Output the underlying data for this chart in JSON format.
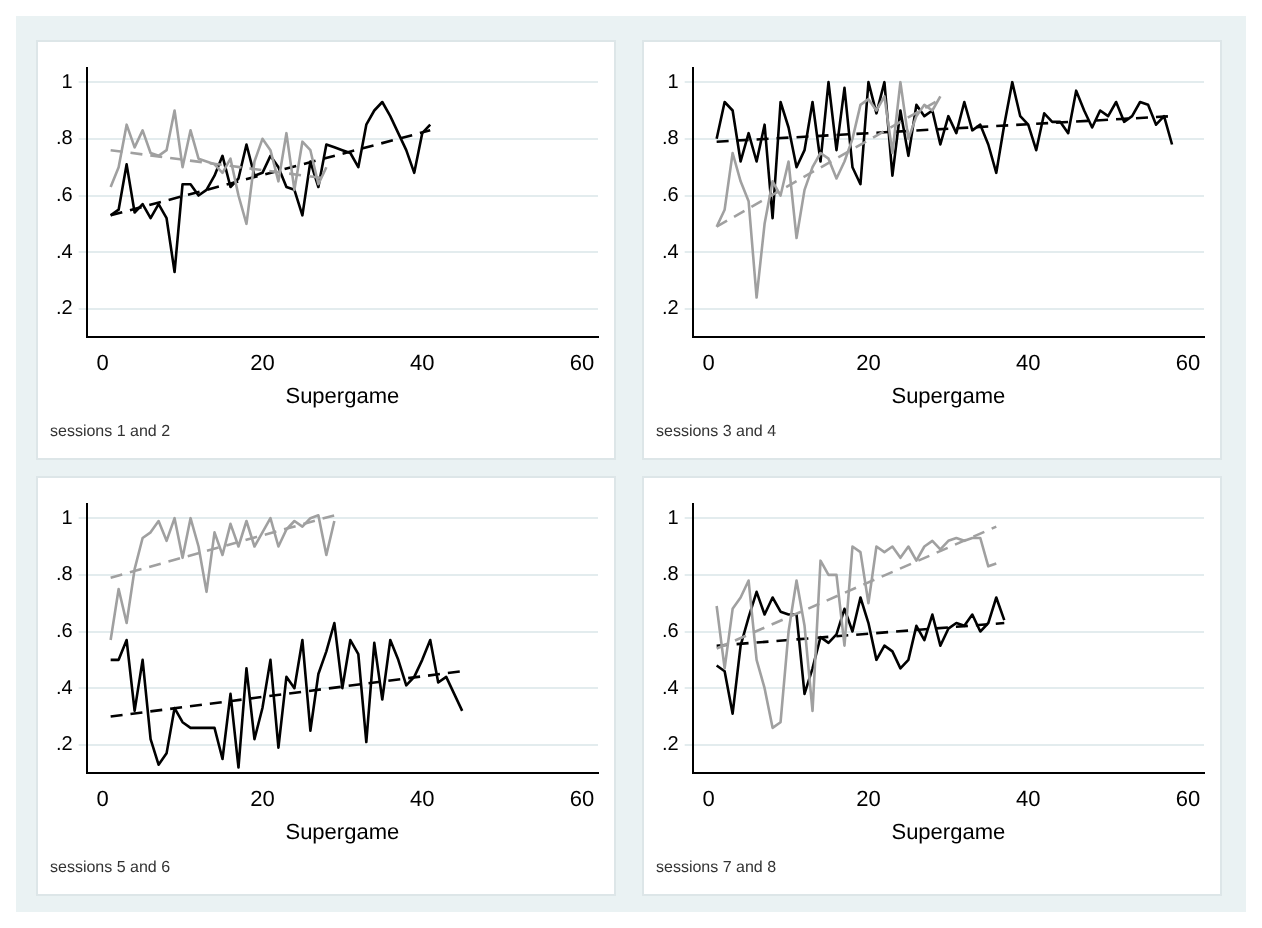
{
  "chart_data": [
    {
      "type": "line",
      "xlabel": "Supergame",
      "annotations": [
        "sessions 1 and 2"
      ],
      "xlim": [
        -2,
        62
      ],
      "xticks": [
        0,
        20,
        40,
        60
      ],
      "ylim": [
        0.1,
        1.05
      ],
      "yticks": [
        {
          "value": 0.2,
          "label": ".2"
        },
        {
          "value": 0.4,
          "label": ".4"
        },
        {
          "value": 0.6,
          "label": ".6"
        },
        {
          "value": 0.8,
          "label": ".8"
        },
        {
          "value": 1,
          "label": "1"
        }
      ],
      "grid": "y",
      "marker": "none",
      "series": [
        {
          "color": "#a0a0a0",
          "line_style": "solid",
          "x": [
            1,
            2,
            3,
            4,
            5,
            6,
            7,
            8,
            9,
            10,
            11,
            12,
            13,
            14,
            15,
            16,
            17,
            18,
            19,
            20,
            21,
            22,
            23,
            24,
            25,
            26,
            27,
            28
          ],
          "values": [
            0.63,
            0.7,
            0.85,
            0.77,
            0.83,
            0.75,
            0.74,
            0.76,
            0.9,
            0.7,
            0.83,
            0.73,
            0.72,
            0.71,
            0.68,
            0.73,
            0.6,
            0.5,
            0.72,
            0.8,
            0.76,
            0.65,
            0.82,
            0.62,
            0.79,
            0.76,
            0.64,
            0.7
          ]
        },
        {
          "color": "#a0a0a0",
          "line_style": "dashed",
          "x": [
            1,
            28
          ],
          "values": [
            0.76,
            0.66
          ]
        },
        {
          "color": "#000000",
          "line_style": "solid",
          "x": [
            1,
            2,
            3,
            4,
            5,
            6,
            7,
            8,
            9,
            10,
            11,
            12,
            13,
            14,
            15,
            16,
            17,
            18,
            19,
            20,
            21,
            22,
            23,
            24,
            25,
            26,
            27,
            28,
            29,
            30,
            31,
            32,
            33,
            34,
            35,
            36,
            37,
            38,
            39,
            40,
            41
          ],
          "values": [
            0.53,
            0.55,
            0.71,
            0.54,
            0.57,
            0.52,
            0.57,
            0.52,
            0.33,
            0.64,
            0.64,
            0.6,
            0.62,
            0.67,
            0.74,
            0.63,
            0.66,
            0.78,
            0.67,
            0.68,
            0.74,
            0.7,
            0.63,
            0.62,
            0.53,
            0.72,
            0.63,
            0.78,
            0.77,
            0.76,
            0.75,
            0.7,
            0.85,
            0.9,
            0.93,
            0.88,
            0.82,
            0.76,
            0.68,
            0.82,
            0.85
          ]
        },
        {
          "color": "#000000",
          "line_style": "dashed",
          "x": [
            1,
            41
          ],
          "values": [
            0.53,
            0.83
          ]
        }
      ]
    },
    {
      "type": "line",
      "xlabel": "Supergame",
      "annotations": [
        "sessions 3 and 4"
      ],
      "xlim": [
        -2,
        62
      ],
      "xticks": [
        0,
        20,
        40,
        60
      ],
      "ylim": [
        0.1,
        1.05
      ],
      "yticks": [
        {
          "value": 0.2,
          "label": ".2"
        },
        {
          "value": 0.4,
          "label": ".4"
        },
        {
          "value": 0.6,
          "label": ".6"
        },
        {
          "value": 0.8,
          "label": ".8"
        },
        {
          "value": 1,
          "label": "1"
        }
      ],
      "grid": "y",
      "marker": "none",
      "series": [
        {
          "color": "#a0a0a0",
          "line_style": "solid",
          "x": [
            1,
            2,
            3,
            4,
            5,
            6,
            7,
            8,
            9,
            10,
            11,
            12,
            13,
            14,
            15,
            16,
            17,
            18,
            19,
            20,
            21,
            22,
            23,
            24,
            25,
            26,
            27,
            28,
            29
          ],
          "values": [
            0.49,
            0.55,
            0.75,
            0.65,
            0.58,
            0.24,
            0.5,
            0.65,
            0.6,
            0.72,
            0.45,
            0.62,
            0.7,
            0.75,
            0.73,
            0.66,
            0.72,
            0.8,
            0.92,
            0.94,
            0.9,
            0.95,
            0.75,
            1.0,
            0.8,
            0.88,
            0.92,
            0.9,
            0.95
          ]
        },
        {
          "color": "#a0a0a0",
          "line_style": "dashed",
          "x": [
            1,
            29
          ],
          "values": [
            0.49,
            0.94
          ]
        },
        {
          "color": "#000000",
          "line_style": "solid",
          "x": [
            1,
            2,
            3,
            4,
            5,
            6,
            7,
            8,
            9,
            10,
            11,
            12,
            13,
            14,
            15,
            16,
            17,
            18,
            19,
            20,
            21,
            22,
            23,
            24,
            25,
            26,
            27,
            28,
            29,
            30,
            31,
            32,
            33,
            34,
            35,
            36,
            37,
            38,
            39,
            40,
            41,
            42,
            43,
            44,
            45,
            46,
            47,
            48,
            49,
            50,
            51,
            52,
            53,
            54,
            55,
            56,
            57,
            58
          ],
          "values": [
            0.8,
            0.93,
            0.9,
            0.72,
            0.82,
            0.72,
            0.85,
            0.52,
            0.93,
            0.84,
            0.7,
            0.76,
            0.93,
            0.72,
            1.0,
            0.76,
            0.98,
            0.7,
            0.64,
            1.0,
            0.89,
            1.0,
            0.67,
            0.9,
            0.74,
            0.92,
            0.88,
            0.9,
            0.78,
            0.88,
            0.82,
            0.93,
            0.83,
            0.85,
            0.78,
            0.68,
            0.85,
            1.0,
            0.88,
            0.85,
            0.76,
            0.89,
            0.86,
            0.86,
            0.82,
            0.97,
            0.9,
            0.84,
            0.9,
            0.88,
            0.93,
            0.86,
            0.88,
            0.93,
            0.92,
            0.85,
            0.88,
            0.78
          ]
        },
        {
          "color": "#000000",
          "line_style": "dashed",
          "x": [
            1,
            58
          ],
          "values": [
            0.79,
            0.88
          ]
        }
      ]
    },
    {
      "type": "line",
      "xlabel": "Supergame",
      "annotations": [
        "sessions 5 and 6"
      ],
      "xlim": [
        -2,
        62
      ],
      "xticks": [
        0,
        20,
        40,
        60
      ],
      "ylim": [
        0.1,
        1.05
      ],
      "yticks": [
        {
          "value": 0.2,
          "label": ".2"
        },
        {
          "value": 0.4,
          "label": ".4"
        },
        {
          "value": 0.6,
          "label": ".6"
        },
        {
          "value": 0.8,
          "label": ".8"
        },
        {
          "value": 1,
          "label": "1"
        }
      ],
      "grid": "y",
      "marker": "none",
      "series": [
        {
          "color": "#a0a0a0",
          "line_style": "solid",
          "x": [
            1,
            2,
            3,
            4,
            5,
            6,
            7,
            8,
            9,
            10,
            11,
            12,
            13,
            14,
            15,
            16,
            17,
            18,
            19,
            20,
            21,
            22,
            23,
            24,
            25,
            26,
            27,
            28,
            29
          ],
          "values": [
            0.57,
            0.75,
            0.63,
            0.82,
            0.93,
            0.95,
            0.99,
            0.92,
            1.0,
            0.86,
            1.0,
            0.9,
            0.74,
            0.95,
            0.87,
            0.98,
            0.9,
            0.99,
            0.9,
            0.95,
            1.0,
            0.9,
            0.96,
            0.99,
            0.97,
            1.0,
            1.01,
            0.87,
            0.99
          ]
        },
        {
          "color": "#a0a0a0",
          "line_style": "dashed",
          "x": [
            1,
            29
          ],
          "values": [
            0.79,
            1.01
          ]
        },
        {
          "color": "#000000",
          "line_style": "solid",
          "x": [
            1,
            2,
            3,
            4,
            5,
            6,
            7,
            8,
            9,
            10,
            11,
            12,
            13,
            14,
            15,
            16,
            17,
            18,
            19,
            20,
            21,
            22,
            23,
            24,
            25,
            26,
            27,
            28,
            29,
            30,
            31,
            32,
            33,
            34,
            35,
            36,
            37,
            38,
            39,
            40,
            41,
            42,
            43,
            44,
            45
          ],
          "values": [
            0.5,
            0.5,
            0.57,
            0.32,
            0.5,
            0.22,
            0.13,
            0.17,
            0.33,
            0.28,
            0.26,
            0.26,
            0.26,
            0.26,
            0.15,
            0.38,
            0.12,
            0.47,
            0.22,
            0.33,
            0.5,
            0.19,
            0.44,
            0.4,
            0.57,
            0.25,
            0.45,
            0.53,
            0.63,
            0.4,
            0.57,
            0.52,
            0.21,
            0.56,
            0.36,
            0.57,
            0.5,
            0.41,
            0.44,
            0.5,
            0.57,
            0.42,
            0.44,
            0.38,
            0.32
          ]
        },
        {
          "color": "#000000",
          "line_style": "dashed",
          "x": [
            1,
            45
          ],
          "values": [
            0.3,
            0.46
          ]
        }
      ]
    },
    {
      "type": "line",
      "xlabel": "Supergame",
      "annotations": [
        "sessions 7 and 8"
      ],
      "xlim": [
        -2,
        62
      ],
      "xticks": [
        0,
        20,
        40,
        60
      ],
      "ylim": [
        0.1,
        1.05
      ],
      "yticks": [
        {
          "value": 0.2,
          "label": ".2"
        },
        {
          "value": 0.4,
          "label": ".4"
        },
        {
          "value": 0.6,
          "label": ".6"
        },
        {
          "value": 0.8,
          "label": ".8"
        },
        {
          "value": 1,
          "label": "1"
        }
      ],
      "grid": "y",
      "marker": "none",
      "series": [
        {
          "color": "#a0a0a0",
          "line_style": "solid",
          "x": [
            1,
            2,
            3,
            4,
            5,
            6,
            7,
            8,
            9,
            10,
            11,
            12,
            13,
            14,
            15,
            16,
            17,
            18,
            19,
            20,
            21,
            22,
            23,
            24,
            25,
            26,
            27,
            28,
            29,
            30,
            31,
            32,
            33,
            34,
            35,
            36
          ],
          "values": [
            0.69,
            0.47,
            0.68,
            0.72,
            0.78,
            0.5,
            0.4,
            0.26,
            0.28,
            0.6,
            0.78,
            0.62,
            0.32,
            0.85,
            0.8,
            0.8,
            0.55,
            0.9,
            0.88,
            0.7,
            0.9,
            0.88,
            0.9,
            0.86,
            0.9,
            0.85,
            0.9,
            0.92,
            0.89,
            0.92,
            0.93,
            0.92,
            0.93,
            0.93,
            0.83,
            0.84
          ]
        },
        {
          "color": "#a0a0a0",
          "line_style": "dashed",
          "x": [
            1,
            36
          ],
          "values": [
            0.54,
            0.97
          ]
        },
        {
          "color": "#000000",
          "line_style": "solid",
          "x": [
            1,
            2,
            3,
            4,
            5,
            6,
            7,
            8,
            9,
            10,
            11,
            12,
            13,
            14,
            15,
            16,
            17,
            18,
            19,
            20,
            21,
            22,
            23,
            24,
            25,
            26,
            27,
            28,
            29,
            30,
            31,
            32,
            33,
            34,
            35,
            36,
            37
          ],
          "values": [
            0.48,
            0.46,
            0.31,
            0.55,
            0.65,
            0.74,
            0.66,
            0.72,
            0.67,
            0.66,
            0.66,
            0.38,
            0.47,
            0.58,
            0.56,
            0.59,
            0.68,
            0.6,
            0.72,
            0.63,
            0.5,
            0.55,
            0.53,
            0.47,
            0.5,
            0.62,
            0.57,
            0.66,
            0.55,
            0.61,
            0.63,
            0.62,
            0.66,
            0.6,
            0.63,
            0.72,
            0.64
          ]
        },
        {
          "color": "#000000",
          "line_style": "dashed",
          "x": [
            1,
            37
          ],
          "values": [
            0.55,
            0.63
          ]
        }
      ]
    }
  ]
}
